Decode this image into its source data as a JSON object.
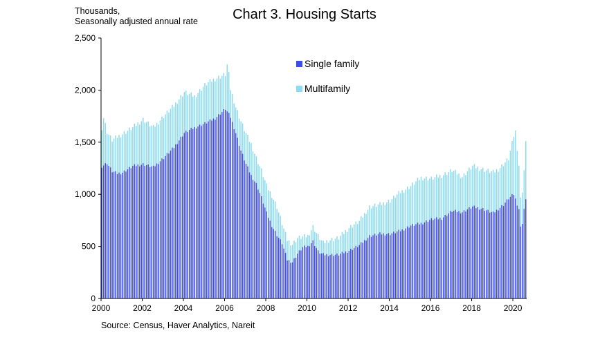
{
  "chart_data": {
    "type": "bar",
    "stacked": true,
    "title": "Chart 3. Housing Starts",
    "unit_label_line1": "Thousands,",
    "unit_label_line2": "Seasonally adjusted annual rate",
    "source": "Source: Census, Haver Analytics, Nareit",
    "ylim": [
      0,
      2500
    ],
    "yticks": [
      "0",
      "500",
      "1,000",
      "1,500",
      "2,000",
      "2,500"
    ],
    "ytick_values": [
      0,
      500,
      1000,
      1500,
      2000,
      2500
    ],
    "xlim": [
      2000,
      2020.67
    ],
    "xticks": [
      "2000",
      "2002",
      "2004",
      "2006",
      "2008",
      "2010",
      "2012",
      "2014",
      "2016",
      "2018",
      "2020"
    ],
    "xtick_values": [
      2000,
      2002,
      2004,
      2006,
      2008,
      2010,
      2012,
      2014,
      2016,
      2018,
      2020
    ],
    "colors": {
      "single": "#3d4de8",
      "multi": "#8fdcf0"
    },
    "series": [
      {
        "name": "Single family",
        "color": "#3d4de8"
      },
      {
        "name": "Multifamily",
        "color": "#8fdcf0"
      }
    ],
    "legend_position": "top-center",
    "frequency": "monthly, Jan 2000 - Jul 2020",
    "single_anchors": [
      [
        2000.0,
        1270
      ],
      [
        2000.25,
        1300
      ],
      [
        2000.5,
        1220
      ],
      [
        2000.75,
        1200
      ],
      [
        2001.0,
        1210
      ],
      [
        2001.5,
        1270
      ],
      [
        2002.0,
        1290
      ],
      [
        2002.5,
        1260
      ],
      [
        2003.0,
        1350
      ],
      [
        2003.5,
        1450
      ],
      [
        2004.0,
        1590
      ],
      [
        2004.5,
        1640
      ],
      [
        2005.0,
        1680
      ],
      [
        2005.5,
        1730
      ],
      [
        2006.0,
        1820
      ],
      [
        2006.25,
        1740
      ],
      [
        2006.5,
        1590
      ],
      [
        2006.75,
        1420
      ],
      [
        2007.0,
        1290
      ],
      [
        2007.25,
        1180
      ],
      [
        2007.5,
        1100
      ],
      [
        2007.75,
        970
      ],
      [
        2008.0,
        820
      ],
      [
        2008.25,
        700
      ],
      [
        2008.5,
        610
      ],
      [
        2008.75,
        530
      ],
      [
        2009.0,
        370
      ],
      [
        2009.25,
        350
      ],
      [
        2009.5,
        430
      ],
      [
        2009.75,
        490
      ],
      [
        2010.0,
        500
      ],
      [
        2010.25,
        550
      ],
      [
        2010.5,
        450
      ],
      [
        2010.75,
        420
      ],
      [
        2011.0,
        420
      ],
      [
        2011.5,
        420
      ],
      [
        2012.0,
        460
      ],
      [
        2012.5,
        510
      ],
      [
        2013.0,
        600
      ],
      [
        2013.5,
        620
      ],
      [
        2014.0,
        620
      ],
      [
        2014.5,
        650
      ],
      [
        2015.0,
        700
      ],
      [
        2015.5,
        720
      ],
      [
        2016.0,
        760
      ],
      [
        2016.5,
        770
      ],
      [
        2017.0,
        840
      ],
      [
        2017.5,
        830
      ],
      [
        2018.0,
        880
      ],
      [
        2018.5,
        860
      ],
      [
        2019.0,
        820
      ],
      [
        2019.25,
        860
      ],
      [
        2019.5,
        900
      ],
      [
        2019.75,
        960
      ],
      [
        2020.0,
        1000
      ],
      [
        2020.25,
        860
      ],
      [
        2020.33,
        680
      ],
      [
        2020.42,
        730
      ],
      [
        2020.5,
        860
      ],
      [
        2020.58,
        940
      ]
    ],
    "total_anchors": [
      [
        2000.0,
        1640
      ],
      [
        2000.08,
        1740
      ],
      [
        2000.25,
        1600
      ],
      [
        2000.5,
        1520
      ],
      [
        2001.0,
        1580
      ],
      [
        2001.5,
        1640
      ],
      [
        2002.0,
        1720
      ],
      [
        2002.5,
        1640
      ],
      [
        2003.0,
        1750
      ],
      [
        2003.5,
        1850
      ],
      [
        2004.0,
        1980
      ],
      [
        2004.5,
        1940
      ],
      [
        2005.0,
        2050
      ],
      [
        2005.5,
        2110
      ],
      [
        2006.0,
        2150
      ],
      [
        2006.1,
        2260
      ],
      [
        2006.25,
        2010
      ],
      [
        2006.5,
        1840
      ],
      [
        2006.75,
        1700
      ],
      [
        2007.0,
        1580
      ],
      [
        2007.25,
        1480
      ],
      [
        2007.5,
        1350
      ],
      [
        2007.75,
        1230
      ],
      [
        2008.0,
        1080
      ],
      [
        2008.25,
        990
      ],
      [
        2008.5,
        880
      ],
      [
        2008.75,
        720
      ],
      [
        2009.0,
        560
      ],
      [
        2009.25,
        520
      ],
      [
        2009.5,
        580
      ],
      [
        2009.75,
        590
      ],
      [
        2010.0,
        600
      ],
      [
        2010.25,
        690
      ],
      [
        2010.5,
        600
      ],
      [
        2010.75,
        530
      ],
      [
        2011.0,
        560
      ],
      [
        2011.5,
        580
      ],
      [
        2012.0,
        680
      ],
      [
        2012.5,
        740
      ],
      [
        2013.0,
        880
      ],
      [
        2013.5,
        900
      ],
      [
        2014.0,
        940
      ],
      [
        2014.5,
        1020
      ],
      [
        2015.0,
        1080
      ],
      [
        2015.5,
        1160
      ],
      [
        2016.0,
        1150
      ],
      [
        2016.5,
        1180
      ],
      [
        2017.0,
        1230
      ],
      [
        2017.5,
        1170
      ],
      [
        2018.0,
        1270
      ],
      [
        2018.5,
        1240
      ],
      [
        2019.0,
        1210
      ],
      [
        2019.25,
        1240
      ],
      [
        2019.5,
        1290
      ],
      [
        2019.75,
        1340
      ],
      [
        2020.0,
        1560
      ],
      [
        2020.08,
        1610
      ],
      [
        2020.25,
        1280
      ],
      [
        2020.33,
        950
      ],
      [
        2020.42,
        1040
      ],
      [
        2020.5,
        1230
      ],
      [
        2020.58,
        1490
      ]
    ]
  }
}
